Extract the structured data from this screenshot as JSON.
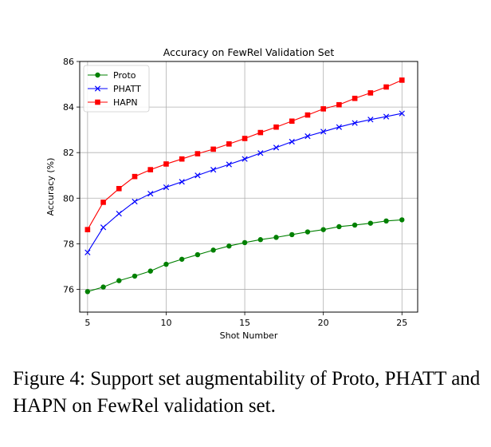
{
  "chart_data": {
    "type": "line",
    "title": "Accuracy on FewRel Validation Set",
    "xlabel": "Shot Number",
    "ylabel": "Accuracy (%)",
    "xlim": [
      4.5,
      26
    ],
    "ylim": [
      75,
      86
    ],
    "xticks": [
      5,
      10,
      15,
      20,
      25
    ],
    "yticks": [
      76,
      78,
      80,
      82,
      84,
      86
    ],
    "grid": true,
    "legend_position": "top-left",
    "x": [
      5,
      6,
      7,
      8,
      9,
      10,
      11,
      12,
      13,
      14,
      15,
      16,
      17,
      18,
      19,
      20,
      21,
      22,
      23,
      24,
      25
    ],
    "series": [
      {
        "name": "Proto",
        "color": "#008000",
        "marker": "circle",
        "values": [
          75.9,
          76.1,
          76.38,
          76.58,
          76.8,
          77.1,
          77.32,
          77.52,
          77.72,
          77.9,
          78.05,
          78.18,
          78.28,
          78.4,
          78.52,
          78.62,
          78.75,
          78.82,
          78.9,
          79.0,
          79.05
        ]
      },
      {
        "name": "PHATT",
        "color": "#0000ff",
        "marker": "x",
        "values": [
          77.62,
          78.72,
          79.32,
          79.85,
          80.2,
          80.48,
          80.72,
          81.0,
          81.25,
          81.48,
          81.72,
          81.98,
          82.22,
          82.48,
          82.72,
          82.92,
          83.12,
          83.3,
          83.45,
          83.58,
          83.72
        ]
      },
      {
        "name": "HAPN",
        "color": "#ff0000",
        "marker": "square",
        "values": [
          78.62,
          79.82,
          80.42,
          80.95,
          81.25,
          81.5,
          81.72,
          81.95,
          82.15,
          82.38,
          82.62,
          82.88,
          83.12,
          83.38,
          83.65,
          83.92,
          84.1,
          84.38,
          84.62,
          84.88,
          85.18
        ]
      }
    ]
  },
  "caption": "Figure 4: Support set augmentability of Proto, PHATT and HAPN on FewRel validation set."
}
